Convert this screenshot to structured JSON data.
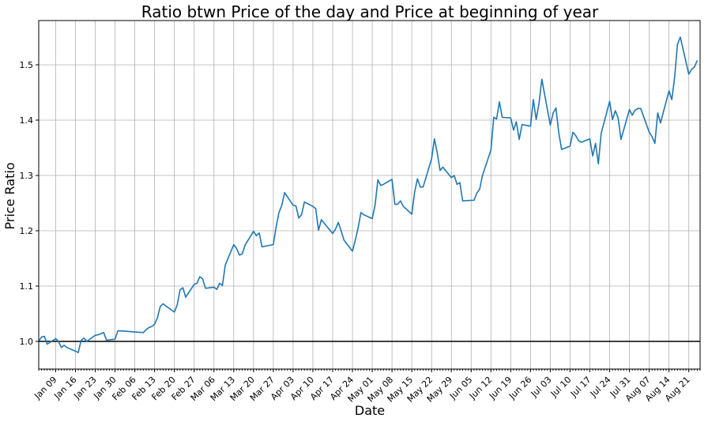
{
  "chart_data": {
    "type": "line",
    "title": "Ratio btwn Price of the day and Price at beginning of year",
    "xlabel": "Date",
    "ylabel": "Price Ratio",
    "x_start": "2017-01-03",
    "x_end": "2017-08-25",
    "ylim": [
      0.95,
      1.58
    ],
    "yticks": [
      1.0,
      1.1,
      1.2,
      1.3,
      1.4,
      1.5
    ],
    "ytick_labels": [
      "1.0",
      "1.1",
      "1.2",
      "1.3",
      "1.4",
      "1.5"
    ],
    "xticks": [
      {
        "date": "2017-01-09",
        "label": "Jan 09"
      },
      {
        "date": "2017-01-16",
        "label": "Jan 16"
      },
      {
        "date": "2017-01-23",
        "label": "Jan 23"
      },
      {
        "date": "2017-01-30",
        "label": "Jan 30"
      },
      {
        "date": "2017-02-06",
        "label": "Feb 06"
      },
      {
        "date": "2017-02-13",
        "label": "Feb 13"
      },
      {
        "date": "2017-02-20",
        "label": "Feb 20"
      },
      {
        "date": "2017-02-27",
        "label": "Feb 27"
      },
      {
        "date": "2017-03-06",
        "label": "Mar 06"
      },
      {
        "date": "2017-03-13",
        "label": "Mar 13"
      },
      {
        "date": "2017-03-20",
        "label": "Mar 20"
      },
      {
        "date": "2017-03-27",
        "label": "Mar 27"
      },
      {
        "date": "2017-04-03",
        "label": "Apr 03"
      },
      {
        "date": "2017-04-10",
        "label": "Apr 10"
      },
      {
        "date": "2017-04-17",
        "label": "Apr 17"
      },
      {
        "date": "2017-04-24",
        "label": "Apr 24"
      },
      {
        "date": "2017-05-01",
        "label": "May 01"
      },
      {
        "date": "2017-05-08",
        "label": "May 08"
      },
      {
        "date": "2017-05-15",
        "label": "May 15"
      },
      {
        "date": "2017-05-22",
        "label": "May 22"
      },
      {
        "date": "2017-05-29",
        "label": "May 29"
      },
      {
        "date": "2017-06-05",
        "label": "Jun 05"
      },
      {
        "date": "2017-06-12",
        "label": "Jun 12"
      },
      {
        "date": "2017-06-19",
        "label": "Jun 19"
      },
      {
        "date": "2017-06-26",
        "label": "Jun 26"
      },
      {
        "date": "2017-07-03",
        "label": "Jul 03"
      },
      {
        "date": "2017-07-10",
        "label": "Jul 10"
      },
      {
        "date": "2017-07-17",
        "label": "Jul 17"
      },
      {
        "date": "2017-07-24",
        "label": "Jul 24"
      },
      {
        "date": "2017-07-31",
        "label": "Jul 31"
      },
      {
        "date": "2017-08-07",
        "label": "Aug 07"
      },
      {
        "date": "2017-08-14",
        "label": "Aug 14"
      },
      {
        "date": "2017-08-21",
        "label": "Aug 21"
      }
    ],
    "grid": true,
    "reference_line": {
      "y": 1.0,
      "color": "#000000"
    },
    "series": [
      {
        "color": "#1f77b4",
        "points": [
          [
            "2017-01-03",
            1.0
          ],
          [
            "2017-01-04",
            1.008
          ],
          [
            "2017-01-05",
            1.009
          ],
          [
            "2017-01-06",
            0.995
          ],
          [
            "2017-01-09",
            1.005
          ],
          [
            "2017-01-10",
            1.0
          ],
          [
            "2017-01-11",
            0.989
          ],
          [
            "2017-01-12",
            0.993
          ],
          [
            "2017-01-13",
            0.989
          ],
          [
            "2017-01-17",
            0.98
          ],
          [
            "2017-01-18",
            1.002
          ],
          [
            "2017-01-19",
            1.006
          ],
          [
            "2017-01-20",
            1.0
          ],
          [
            "2017-01-23",
            1.011
          ],
          [
            "2017-01-24",
            1.012
          ],
          [
            "2017-01-25",
            1.014
          ],
          [
            "2017-01-26",
            1.016
          ],
          [
            "2017-01-27",
            1.002
          ],
          [
            "2017-01-30",
            1.004
          ],
          [
            "2017-01-31",
            1.019
          ],
          [
            "2017-02-01",
            1.019
          ],
          [
            "2017-02-06",
            1.017
          ],
          [
            "2017-02-09",
            1.016
          ],
          [
            "2017-02-10",
            1.021
          ],
          [
            "2017-02-11",
            1.025
          ],
          [
            "2017-02-12",
            1.027
          ],
          [
            "2017-02-13",
            1.031
          ],
          [
            "2017-02-14",
            1.043
          ],
          [
            "2017-02-15",
            1.063
          ],
          [
            "2017-02-16",
            1.068
          ],
          [
            "2017-02-17",
            1.064
          ],
          [
            "2017-02-20",
            1.053
          ],
          [
            "2017-02-21",
            1.066
          ],
          [
            "2017-02-22",
            1.093
          ],
          [
            "2017-02-23",
            1.097
          ],
          [
            "2017-02-24",
            1.08
          ],
          [
            "2017-02-27",
            1.103
          ],
          [
            "2017-02-28",
            1.105
          ],
          [
            "2017-03-01",
            1.117
          ],
          [
            "2017-03-02",
            1.113
          ],
          [
            "2017-03-03",
            1.096
          ],
          [
            "2017-03-06",
            1.098
          ],
          [
            "2017-03-07",
            1.094
          ],
          [
            "2017-03-08",
            1.105
          ],
          [
            "2017-03-09",
            1.101
          ],
          [
            "2017-03-10",
            1.138
          ],
          [
            "2017-03-13",
            1.175
          ],
          [
            "2017-03-14",
            1.168
          ],
          [
            "2017-03-15",
            1.156
          ],
          [
            "2017-03-16",
            1.158
          ],
          [
            "2017-03-17",
            1.174
          ],
          [
            "2017-03-20",
            1.199
          ],
          [
            "2017-03-21",
            1.191
          ],
          [
            "2017-03-22",
            1.196
          ],
          [
            "2017-03-23",
            1.171
          ],
          [
            "2017-03-24",
            1.172
          ],
          [
            "2017-03-27",
            1.175
          ],
          [
            "2017-03-28",
            1.207
          ],
          [
            "2017-03-29",
            1.233
          ],
          [
            "2017-03-30",
            1.246
          ],
          [
            "2017-03-31",
            1.269
          ],
          [
            "2017-04-03",
            1.246
          ],
          [
            "2017-04-04",
            1.245
          ],
          [
            "2017-04-05",
            1.223
          ],
          [
            "2017-04-06",
            1.229
          ],
          [
            "2017-04-07",
            1.252
          ],
          [
            "2017-04-10",
            1.244
          ],
          [
            "2017-04-11",
            1.24
          ],
          [
            "2017-04-12",
            1.201
          ],
          [
            "2017-04-13",
            1.22
          ],
          [
            "2017-04-17",
            1.195
          ],
          [
            "2017-04-18",
            1.203
          ],
          [
            "2017-04-19",
            1.215
          ],
          [
            "2017-04-20",
            1.2
          ],
          [
            "2017-04-21",
            1.183
          ],
          [
            "2017-04-24",
            1.163
          ],
          [
            "2017-04-25",
            1.183
          ],
          [
            "2017-04-26",
            1.205
          ],
          [
            "2017-04-27",
            1.233
          ],
          [
            "2017-04-28",
            1.229
          ],
          [
            "2017-05-01",
            1.222
          ],
          [
            "2017-05-02",
            1.246
          ],
          [
            "2017-05-03",
            1.292
          ],
          [
            "2017-05-04",
            1.282
          ],
          [
            "2017-05-05",
            1.284
          ],
          [
            "2017-05-08",
            1.293
          ],
          [
            "2017-05-09",
            1.248
          ],
          [
            "2017-05-10",
            1.248
          ],
          [
            "2017-05-11",
            1.254
          ],
          [
            "2017-05-12",
            1.244
          ],
          [
            "2017-05-15",
            1.23
          ],
          [
            "2017-05-16",
            1.27
          ],
          [
            "2017-05-17",
            1.294
          ],
          [
            "2017-05-18",
            1.279
          ],
          [
            "2017-05-19",
            1.279
          ],
          [
            "2017-05-22",
            1.33
          ],
          [
            "2017-05-23",
            1.366
          ],
          [
            "2017-05-24",
            1.341
          ],
          [
            "2017-05-25",
            1.309
          ],
          [
            "2017-05-26",
            1.315
          ],
          [
            "2017-05-29",
            1.296
          ],
          [
            "2017-05-30",
            1.3
          ],
          [
            "2017-05-31",
            1.284
          ],
          [
            "2017-06-01",
            1.287
          ],
          [
            "2017-06-02",
            1.254
          ],
          [
            "2017-06-05",
            1.255
          ],
          [
            "2017-06-06",
            1.255
          ],
          [
            "2017-06-07",
            1.268
          ],
          [
            "2017-06-08",
            1.275
          ],
          [
            "2017-06-09",
            1.3
          ],
          [
            "2017-06-12",
            1.346
          ],
          [
            "2017-06-13",
            1.405
          ],
          [
            "2017-06-14",
            1.402
          ],
          [
            "2017-06-15",
            1.433
          ],
          [
            "2017-06-16",
            1.405
          ],
          [
            "2017-06-19",
            1.404
          ],
          [
            "2017-06-20",
            1.382
          ],
          [
            "2017-06-21",
            1.397
          ],
          [
            "2017-06-22",
            1.365
          ],
          [
            "2017-06-23",
            1.392
          ],
          [
            "2017-06-26",
            1.389
          ],
          [
            "2017-06-27",
            1.437
          ],
          [
            "2017-06-28",
            1.401
          ],
          [
            "2017-06-29",
            1.43
          ],
          [
            "2017-06-30",
            1.474
          ],
          [
            "2017-07-03",
            1.391
          ],
          [
            "2017-07-04",
            1.413
          ],
          [
            "2017-07-05",
            1.422
          ],
          [
            "2017-07-06",
            1.377
          ],
          [
            "2017-07-07",
            1.347
          ],
          [
            "2017-07-10",
            1.353
          ],
          [
            "2017-07-11",
            1.378
          ],
          [
            "2017-07-12",
            1.372
          ],
          [
            "2017-07-13",
            1.363
          ],
          [
            "2017-07-14",
            1.36
          ],
          [
            "2017-07-17",
            1.366
          ],
          [
            "2017-07-18",
            1.335
          ],
          [
            "2017-07-19",
            1.358
          ],
          [
            "2017-07-20",
            1.321
          ],
          [
            "2017-07-21",
            1.376
          ],
          [
            "2017-07-24",
            1.434
          ],
          [
            "2017-07-25",
            1.401
          ],
          [
            "2017-07-26",
            1.417
          ],
          [
            "2017-07-27",
            1.404
          ],
          [
            "2017-07-28",
            1.365
          ],
          [
            "2017-07-31",
            1.419
          ],
          [
            "2017-08-01",
            1.409
          ],
          [
            "2017-08-02",
            1.418
          ],
          [
            "2017-08-03",
            1.421
          ],
          [
            "2017-08-04",
            1.421
          ],
          [
            "2017-08-07",
            1.378
          ],
          [
            "2017-08-08",
            1.37
          ],
          [
            "2017-08-09",
            1.358
          ],
          [
            "2017-08-10",
            1.413
          ],
          [
            "2017-08-11",
            1.395
          ],
          [
            "2017-08-14",
            1.453
          ],
          [
            "2017-08-15",
            1.437
          ],
          [
            "2017-08-16",
            1.478
          ],
          [
            "2017-08-17",
            1.537
          ],
          [
            "2017-08-18",
            1.55
          ],
          [
            "2017-08-21",
            1.483
          ],
          [
            "2017-08-22",
            1.492
          ],
          [
            "2017-08-23",
            1.496
          ],
          [
            "2017-08-24",
            1.508
          ]
        ]
      }
    ]
  }
}
